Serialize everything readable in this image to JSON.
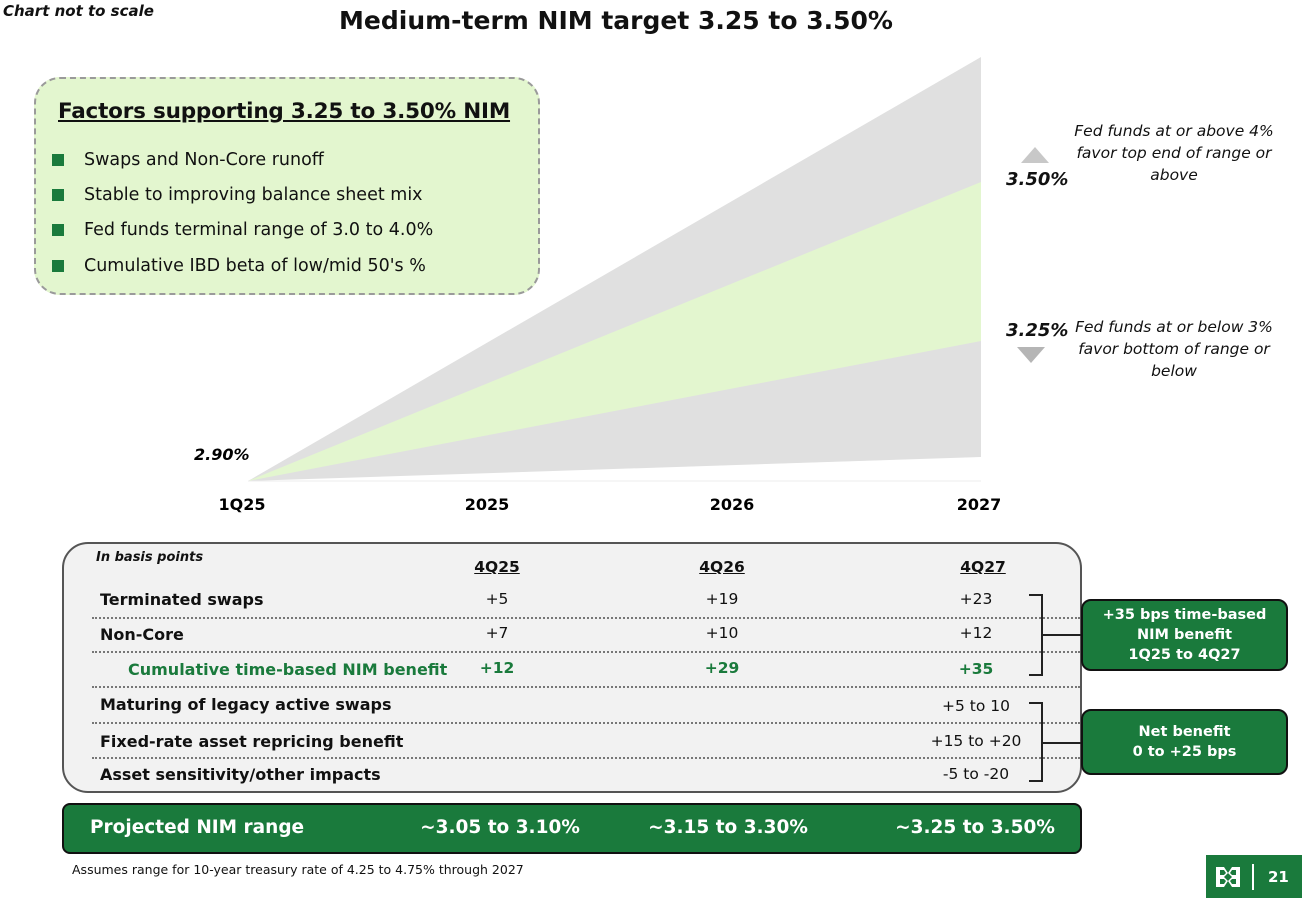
{
  "header": {
    "scale_note": "Chart not to scale",
    "title": "Medium-term NIM target 3.25 to 3.50%"
  },
  "factors": {
    "title": "Factors supporting 3.25 to 3.50% NIM",
    "items": [
      "Swaps and Non-Core runoff",
      "Stable to improving balance sheet mix",
      "Fed funds terminal range of 3.0 to 4.0%",
      "Cumulative IBD beta of low/mid 50's %"
    ]
  },
  "chart_data": {
    "type": "area",
    "x": [
      "1Q25",
      "2025",
      "2026",
      "2027"
    ],
    "start_label": "2.90%",
    "series": [
      {
        "values": [
          2.9,
          null,
          null,
          3.5
        ]
      },
      {
        "values": [
          2.9,
          null,
          null,
          3.25
        ]
      }
    ],
    "annotations": {
      "top_pct": "3.50%",
      "top_note": "Fed funds at or above 4% favor top end of range or above",
      "bottom_pct": "3.25%",
      "bottom_note": "Fed funds at or below 3% favor bottom of range or below"
    },
    "colors": {
      "outer_band": "#e0e0e0",
      "target_band": "#e3f6cf"
    }
  },
  "table": {
    "units_note": "In basis points",
    "columns": [
      "4Q25",
      "4Q26",
      "4Q27"
    ],
    "rows": [
      {
        "label": "Terminated swaps",
        "values": [
          "+5",
          "+19",
          "+23"
        ]
      },
      {
        "label": "Non-Core",
        "values": [
          "+7",
          "+10",
          "+12"
        ]
      },
      {
        "label": "Cumulative time-based NIM benefit",
        "values": [
          "+12",
          "+29",
          "+35"
        ]
      },
      {
        "label": "Maturing of legacy active swaps",
        "values": [
          "",
          "",
          "+5 to 10"
        ]
      },
      {
        "label": "Fixed-rate asset repricing benefit",
        "values": [
          "",
          "",
          "+15 to +20"
        ]
      },
      {
        "label": "Asset sensitivity/other impacts",
        "values": [
          "",
          "",
          "-5 to -20"
        ]
      }
    ],
    "callouts": {
      "time_based": [
        "+35 bps time-based",
        "NIM benefit",
        "1Q25 to 4Q27"
      ],
      "net_benefit": [
        "Net benefit",
        "0 to +25 bps"
      ]
    }
  },
  "projected": {
    "label": "Projected NIM range",
    "values": [
      "~3.05 to 3.10%",
      "~3.15 to 3.30%",
      "~3.25 to 3.50%"
    ]
  },
  "footnote": "Assumes range for 10-year treasury rate of 4.25 to 4.75% through 2027",
  "page_number": "21",
  "colors": {
    "brand_green": "#1a7a3c",
    "light_green": "#e3f6cf",
    "grey": "#e0e0e0"
  }
}
